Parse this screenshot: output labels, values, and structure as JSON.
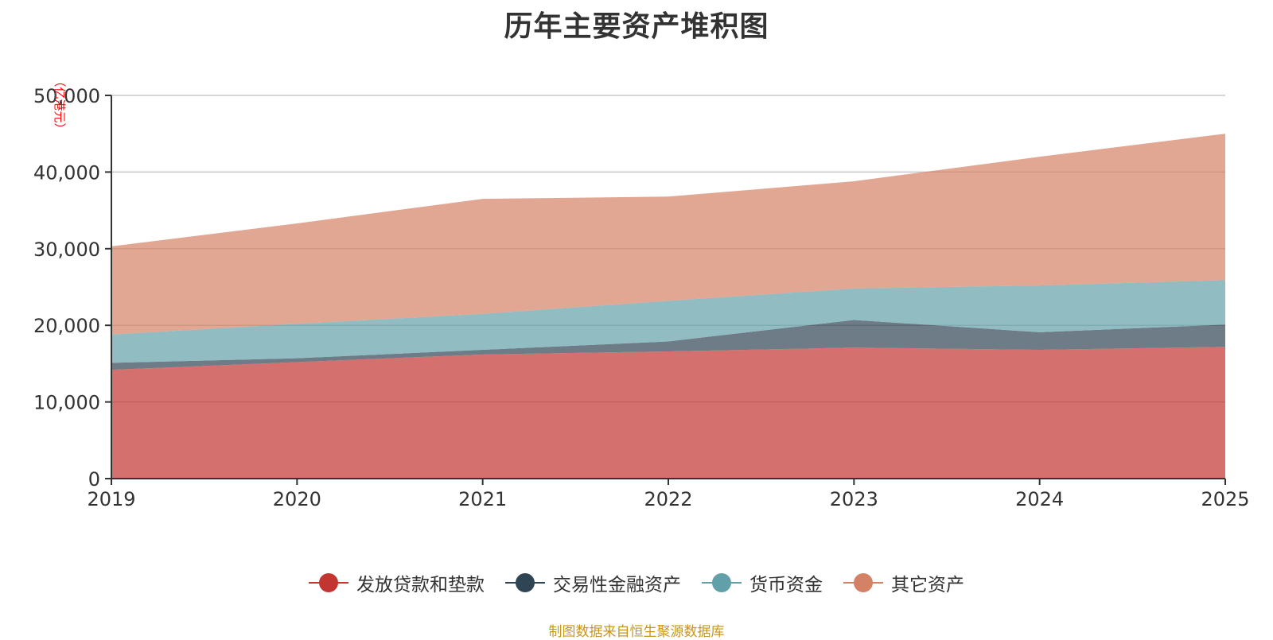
{
  "chart_data": {
    "type": "area",
    "stacked": true,
    "title": "历年主要资产堆积图",
    "ylabel": "（亿港元）",
    "xlabel": "",
    "x": [
      "2019",
      "2020",
      "2021",
      "2022",
      "2023",
      "2024",
      "2025"
    ],
    "ylim": [
      0,
      50000
    ],
    "yticks": [
      0,
      10000,
      20000,
      30000,
      40000,
      50000
    ],
    "ytick_labels": [
      "0",
      "10,000",
      "20,000",
      "30,000",
      "40,000",
      "50,000"
    ],
    "grid": true,
    "legend_position": "bottom-center",
    "series": [
      {
        "name": "发放贷款和垫款",
        "color": "#c23531",
        "values": [
          14200,
          15200,
          16200,
          16600,
          17100,
          16800,
          17200
        ]
      },
      {
        "name": "交易性金融资产",
        "color": "#2f4554",
        "values": [
          900,
          500,
          600,
          1300,
          3600,
          2300,
          2900
        ]
      },
      {
        "name": "货币资金",
        "color": "#61a0a8",
        "values": [
          3700,
          4500,
          4700,
          5300,
          4100,
          6100,
          5800
        ]
      },
      {
        "name": "其它资产",
        "color": "#d48265",
        "values": [
          11500,
          13100,
          15000,
          13600,
          14000,
          16800,
          19100
        ]
      }
    ],
    "source_note": "制图数据来自恒生聚源数据库"
  }
}
